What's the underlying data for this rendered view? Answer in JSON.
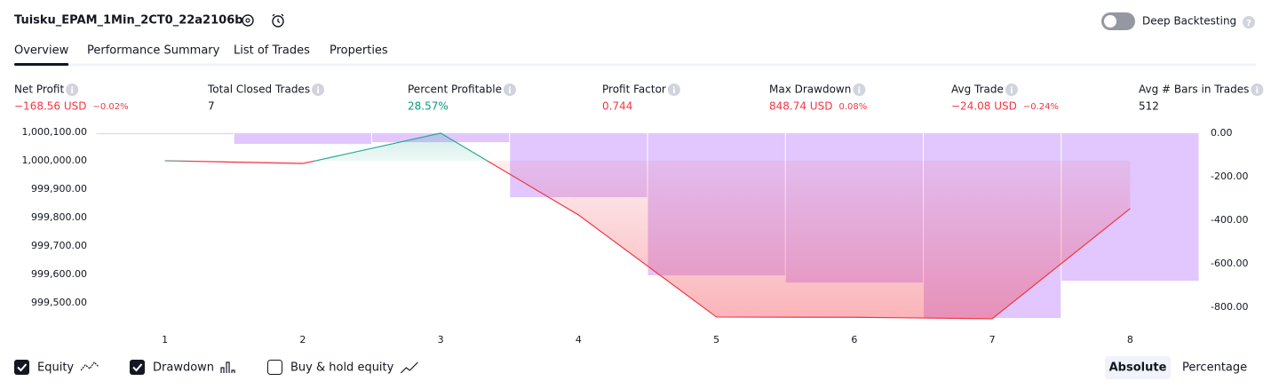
{
  "header": {
    "title": "Tuisku_EPAM_1Min_2CT0_22a2106b",
    "deep_backtesting": "Deep Backtesting"
  },
  "tabs": [
    "Overview",
    "Performance Summary",
    "List of Trades",
    "Properties"
  ],
  "active_tab": 0,
  "metrics": [
    {
      "label": "Net Profit",
      "value": "−168.56 USD",
      "change": "−0.02%",
      "color": "#f23645"
    },
    {
      "label": "Total Closed Trades",
      "value": "7",
      "color": "#131722"
    },
    {
      "label": "Percent Profitable",
      "value": "28.57%",
      "color": "#089981"
    },
    {
      "label": "Profit Factor",
      "value": "0.744",
      "color": "#f23645"
    },
    {
      "label": "Max Drawdown",
      "value": "848.74 USD",
      "change": "0.08%",
      "color": "#f23645"
    },
    {
      "label": "Avg Trade",
      "value": "−24.08 USD",
      "change": "−0.24%",
      "color": "#f23645"
    },
    {
      "label": "Avg # Bars in Trades",
      "value": "512",
      "color": "#131722"
    }
  ],
  "chart_data": {
    "type": "combo",
    "x": [
      1,
      2,
      3,
      4,
      5,
      6,
      7,
      8
    ],
    "xlim": [
      0.5,
      8.5
    ],
    "xticks": [
      1,
      2,
      3,
      4,
      5,
      6,
      7,
      8
    ],
    "series": [
      {
        "name": "Equity",
        "type": "line",
        "axis": "y",
        "color": "#f23645",
        "color_up": "#22ab94",
        "values": [
          1000000,
          999990,
          1000097,
          999809,
          999450,
          999449,
          999444,
          999831.44
        ]
      },
      {
        "name": "Drawdown",
        "type": "bar",
        "axis": "y2",
        "color": "#e1c7fd",
        "values": [
          0,
          -49,
          -41,
          -294,
          -653,
          -686,
          -849,
          -678
        ]
      }
    ],
    "ylim": [
      999431,
      1000128
    ],
    "yticks": [
      {
        "value": 1000100,
        "label": "1,000,100.00"
      },
      {
        "value": 1000000,
        "label": "1,000,000.00"
      },
      {
        "value": 999900,
        "label": "999,900.00"
      },
      {
        "value": 999800,
        "label": "999,800.00"
      },
      {
        "value": 999700,
        "label": "999,700.00"
      },
      {
        "value": 999600,
        "label": "999,600.00"
      },
      {
        "value": 999500,
        "label": "999,500.00"
      }
    ],
    "y2lim": [
      -869,
      41
    ],
    "y2ticks": [
      {
        "value": 0,
        "label": "0.00"
      },
      {
        "value": -200,
        "label": "-200.00"
      },
      {
        "value": -400,
        "label": "-400.00"
      },
      {
        "value": -600,
        "label": "-600.00"
      },
      {
        "value": -800,
        "label": "-800.00"
      }
    ]
  },
  "toggles": [
    {
      "label_path": "series.0",
      "checked": true
    },
    {
      "label_path": "series.1",
      "checked": true
    },
    {
      "label": "Buy & hold equity",
      "checked": false
    }
  ],
  "modes": [
    "Absolute",
    "Percentage"
  ],
  "active_mode": 0
}
